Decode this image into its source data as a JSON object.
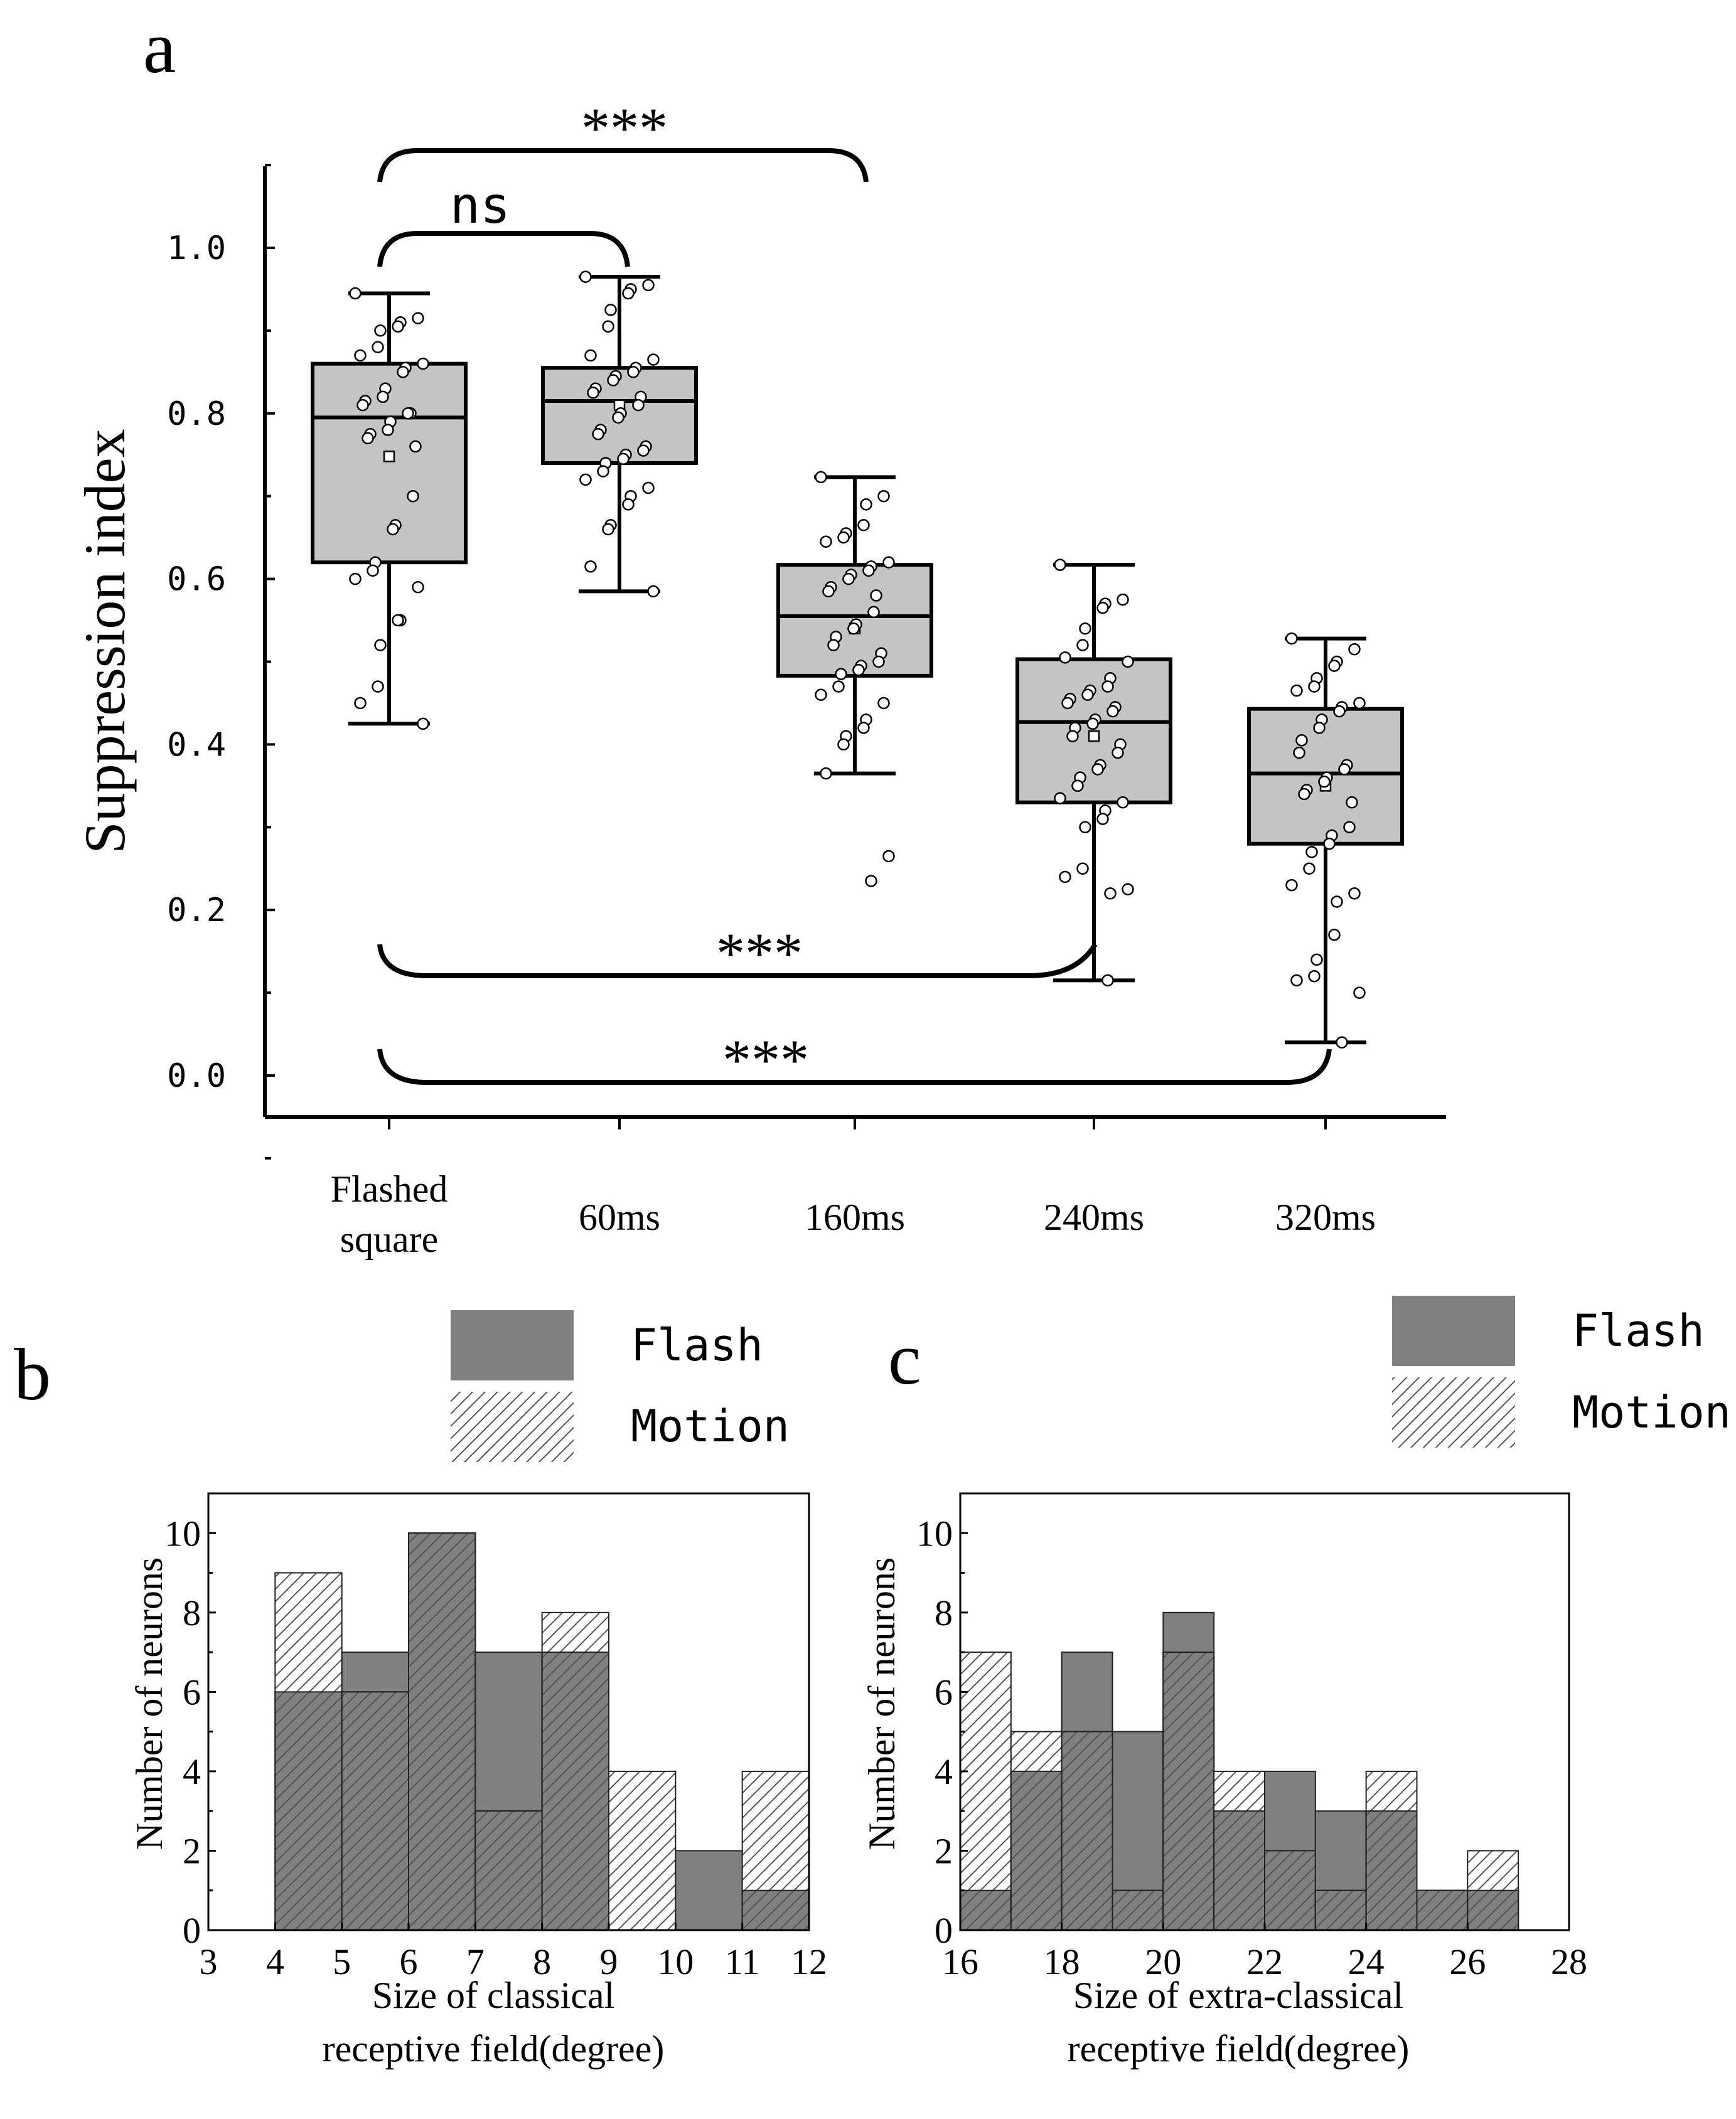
{
  "panel_labels": {
    "a": "a",
    "b": "b",
    "c": "c"
  },
  "colors": {
    "box_fill": "#c4c4c4",
    "flash_fill": "#808080",
    "ink": "#000000",
    "motion_hatch": "#555555"
  },
  "chart_data": [
    {
      "id": "a",
      "type": "box",
      "title": "",
      "xlabel": "",
      "ylabel": "Suppression index",
      "ylim": [
        -0.1,
        1.1
      ],
      "yticks": [
        0.0,
        0.2,
        0.4,
        0.6,
        0.8,
        1.0
      ],
      "ytick_labels": [
        "0.0",
        "0.2",
        "0.4",
        "0.6",
        "0.8",
        "1.0"
      ],
      "categories": [
        "Flashed square",
        "60ms",
        "160ms",
        "240ms",
        "320ms"
      ],
      "category_lines": [
        [
          "Flashed",
          "square"
        ],
        [
          "60ms"
        ],
        [
          "160ms"
        ],
        [
          "240ms"
        ],
        [
          "320ms"
        ]
      ],
      "boxes": [
        {
          "whisker_low": 0.425,
          "q1": 0.62,
          "median": 0.795,
          "q3": 0.86,
          "whisker_high": 0.945,
          "mean": 0.748
        },
        {
          "whisker_low": 0.585,
          "q1": 0.74,
          "median": 0.815,
          "q3": 0.855,
          "whisker_high": 0.965,
          "mean": 0.81
        },
        {
          "whisker_low": 0.365,
          "q1": 0.483,
          "median": 0.555,
          "q3": 0.617,
          "whisker_high": 0.723,
          "mean": 0.54
        },
        {
          "whisker_low": 0.115,
          "q1": 0.33,
          "median": 0.427,
          "q3": 0.503,
          "whisker_high": 0.617,
          "mean": 0.41
        },
        {
          "whisker_low": 0.04,
          "q1": 0.28,
          "median": 0.365,
          "q3": 0.443,
          "whisker_high": 0.528,
          "mean": 0.35
        }
      ],
      "points": [
        [
          0.945,
          0.915,
          0.91,
          0.905,
          0.9,
          0.88,
          0.87,
          0.86,
          0.855,
          0.85,
          0.83,
          0.82,
          0.815,
          0.81,
          0.8,
          0.8,
          0.79,
          0.78,
          0.775,
          0.77,
          0.76,
          0.7,
          0.665,
          0.66,
          0.62,
          0.61,
          0.6,
          0.59,
          0.55,
          0.55,
          0.52,
          0.47,
          0.45,
          0.425
        ],
        [
          0.965,
          0.955,
          0.95,
          0.945,
          0.925,
          0.905,
          0.87,
          0.865,
          0.855,
          0.85,
          0.845,
          0.84,
          0.83,
          0.825,
          0.82,
          0.81,
          0.8,
          0.795,
          0.78,
          0.775,
          0.76,
          0.755,
          0.75,
          0.745,
          0.74,
          0.73,
          0.72,
          0.71,
          0.7,
          0.69,
          0.665,
          0.66,
          0.615,
          0.585
        ],
        [
          0.723,
          0.7,
          0.69,
          0.665,
          0.655,
          0.65,
          0.645,
          0.62,
          0.615,
          0.61,
          0.605,
          0.6,
          0.59,
          0.585,
          0.58,
          0.56,
          0.545,
          0.54,
          0.53,
          0.52,
          0.51,
          0.5,
          0.495,
          0.49,
          0.485,
          0.47,
          0.46,
          0.45,
          0.43,
          0.42,
          0.41,
          0.4,
          0.365,
          0.265,
          0.235
        ],
        [
          0.617,
          0.575,
          0.57,
          0.565,
          0.54,
          0.52,
          0.505,
          0.5,
          0.48,
          0.47,
          0.465,
          0.46,
          0.455,
          0.45,
          0.445,
          0.44,
          0.43,
          0.425,
          0.42,
          0.41,
          0.4,
          0.39,
          0.375,
          0.37,
          0.36,
          0.35,
          0.335,
          0.33,
          0.32,
          0.31,
          0.3,
          0.25,
          0.24,
          0.225,
          0.22,
          0.115
        ],
        [
          0.528,
          0.515,
          0.5,
          0.495,
          0.48,
          0.47,
          0.465,
          0.45,
          0.445,
          0.44,
          0.43,
          0.42,
          0.405,
          0.39,
          0.375,
          0.37,
          0.36,
          0.355,
          0.345,
          0.34,
          0.33,
          0.3,
          0.29,
          0.28,
          0.27,
          0.25,
          0.23,
          0.22,
          0.21,
          0.17,
          0.14,
          0.12,
          0.115,
          0.1,
          0.04
        ]
      ],
      "significance": [
        {
          "from": "Flashed square",
          "to": "60ms",
          "label": "ns",
          "position": "above"
        },
        {
          "from": "Flashed square",
          "to": "160ms",
          "label": "***",
          "position": "above"
        },
        {
          "from": "Flashed square",
          "to": "240ms",
          "label": "***",
          "position": "below"
        },
        {
          "from": "Flashed square",
          "to": "320ms",
          "label": "***",
          "position": "below"
        }
      ]
    },
    {
      "id": "b",
      "type": "bar",
      "title": "",
      "xlabel_lines": [
        "Size of classical",
        "receptive field(degree)"
      ],
      "ylabel": "Number of neurons",
      "xlim": [
        3,
        12
      ],
      "ylim": [
        0,
        11
      ],
      "xticks": [
        3,
        4,
        5,
        6,
        7,
        8,
        9,
        10,
        11,
        12
      ],
      "yticks": [
        0,
        2,
        4,
        6,
        8,
        10
      ],
      "bin_width": 1,
      "bins": [
        4,
        5,
        6,
        7,
        8,
        9,
        10,
        11
      ],
      "legend": [
        "Flash",
        "Motion"
      ],
      "legend_position": "top-right",
      "series": [
        {
          "name": "Flash",
          "values": [
            6,
            7,
            10,
            7,
            7,
            0,
            2,
            1
          ]
        },
        {
          "name": "Motion",
          "values": [
            9,
            6,
            10,
            3,
            8,
            4,
            0,
            4
          ]
        }
      ]
    },
    {
      "id": "c",
      "type": "bar",
      "title": "",
      "xlabel_lines": [
        "Size of extra-classical",
        "receptive field(degree)"
      ],
      "ylabel": "Number of neurons",
      "xlim": [
        16,
        28
      ],
      "ylim": [
        0,
        11
      ],
      "xticks": [
        16,
        18,
        20,
        22,
        24,
        26,
        28
      ],
      "yticks": [
        0,
        2,
        4,
        6,
        8,
        10
      ],
      "bin_width": 1,
      "bins": [
        16,
        17,
        18,
        19,
        20,
        21,
        22,
        23,
        24,
        25,
        26
      ],
      "legend": [
        "Flash",
        "Motion"
      ],
      "legend_position": "top-right",
      "series": [
        {
          "name": "Flash",
          "values": [
            1,
            4,
            7,
            5,
            8,
            3,
            4,
            3,
            3,
            1,
            1
          ]
        },
        {
          "name": "Motion",
          "values": [
            7,
            5,
            5,
            1,
            7,
            4,
            2,
            1,
            4,
            1,
            2
          ]
        }
      ]
    }
  ]
}
